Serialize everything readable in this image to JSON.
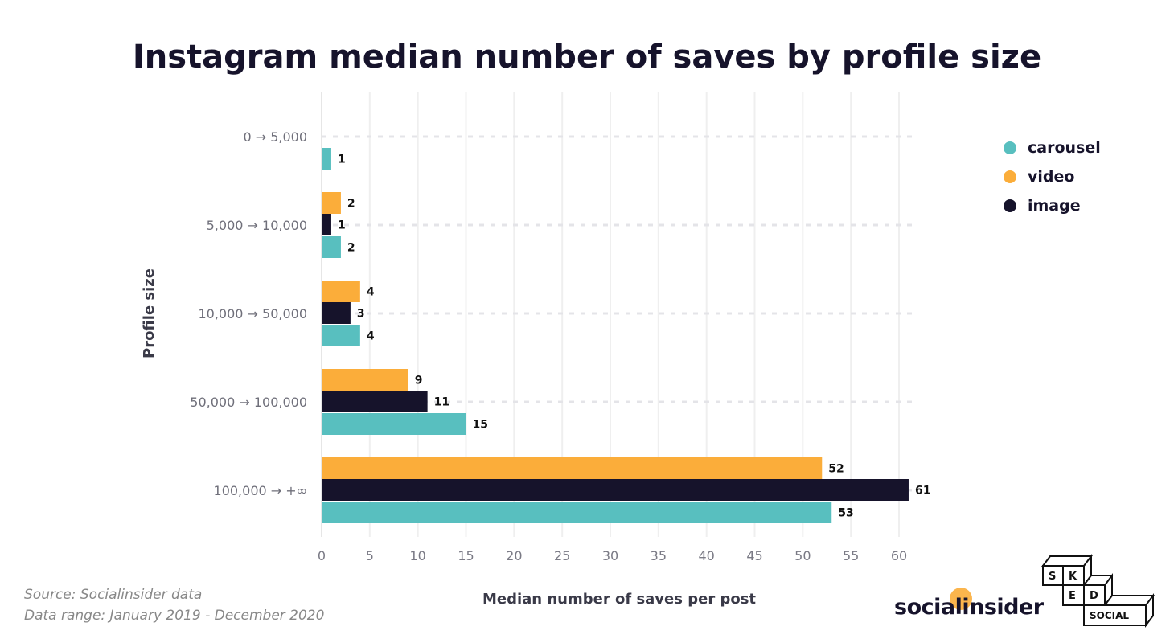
{
  "chart_data": {
    "type": "bar",
    "orientation": "horizontal",
    "title": "Instagram median number of saves by profile size",
    "xlabel": "Median number of saves per post",
    "ylabel": "Profile size",
    "categories": [
      "0 → 5,000",
      "5,000 → 10,000",
      "10,000 → 50,000",
      "50,000 → 100,000",
      "100,000 → +∞"
    ],
    "series": [
      {
        "name": "carousel",
        "color": "#58bfbf",
        "values": [
          1,
          2,
          4,
          15,
          53
        ]
      },
      {
        "name": "video",
        "color": "#fbad3a",
        "values": [
          null,
          2,
          4,
          9,
          52
        ]
      },
      {
        "name": "image",
        "color": "#16132b",
        "values": [
          null,
          1,
          3,
          11,
          61
        ]
      }
    ],
    "xlim": [
      0,
      62
    ],
    "xticks": [
      0,
      5,
      10,
      15,
      20,
      25,
      30,
      35,
      40,
      45,
      50,
      55,
      60
    ],
    "grid": true,
    "legend_position": "right"
  },
  "footer": {
    "source": "Source: Socialinsider data",
    "range": "Data range: January 2019 - December 2020"
  },
  "logos": {
    "socialinsider": "socialinsider",
    "sked": [
      "S",
      "K",
      "E",
      "D",
      "SOCIAL"
    ]
  }
}
